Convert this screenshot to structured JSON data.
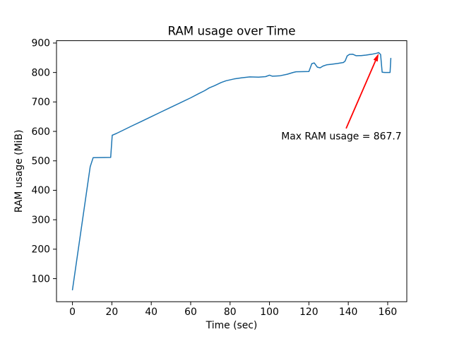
{
  "chart_data": {
    "type": "line",
    "title": "RAM usage over Time",
    "xlabel": "Time (sec)",
    "ylabel": "RAM usage (MiB)",
    "xlim": [
      -8.1,
      169.7
    ],
    "ylim": [
      21.7,
      908.0
    ],
    "xticks": [
      0,
      20,
      40,
      60,
      80,
      100,
      120,
      140,
      160
    ],
    "yticks": [
      100,
      200,
      300,
      400,
      500,
      600,
      700,
      800,
      900
    ],
    "grid": false,
    "legend": null,
    "line_color": "#1f77b4",
    "max_value": 867.7,
    "series": [
      {
        "name": "RAM usage",
        "points": [
          [
            0,
            62
          ],
          [
            9,
            480
          ],
          [
            10.5,
            511
          ],
          [
            19.4,
            511.5
          ],
          [
            20.2,
            587
          ],
          [
            21.3,
            590
          ],
          [
            22.3,
            593
          ],
          [
            26,
            605
          ],
          [
            30,
            618
          ],
          [
            35,
            634
          ],
          [
            40,
            650
          ],
          [
            45,
            666
          ],
          [
            50,
            682
          ],
          [
            55,
            698
          ],
          [
            60,
            714
          ],
          [
            64,
            728
          ],
          [
            67,
            738
          ],
          [
            69.5,
            748
          ],
          [
            72,
            755
          ],
          [
            75.5,
            766
          ],
          [
            78,
            772
          ],
          [
            82,
            778
          ],
          [
            86,
            782
          ],
          [
            90,
            785
          ],
          [
            94.5,
            784
          ],
          [
            98,
            786
          ],
          [
            100,
            791
          ],
          [
            101.5,
            787.5
          ],
          [
            103.5,
            788
          ],
          [
            105.5,
            789
          ],
          [
            109,
            794
          ],
          [
            112,
            800
          ],
          [
            113.5,
            802.5
          ],
          [
            120,
            803.5
          ],
          [
            121.5,
            830
          ],
          [
            122.7,
            832.5
          ],
          [
            124.3,
            818
          ],
          [
            125.7,
            816
          ],
          [
            127.2,
            822
          ],
          [
            129,
            826
          ],
          [
            131.5,
            828
          ],
          [
            134.5,
            830.5
          ],
          [
            137.5,
            834
          ],
          [
            138.4,
            839
          ],
          [
            139.4,
            856
          ],
          [
            140.6,
            861.5
          ],
          [
            142.3,
            862
          ],
          [
            144,
            857
          ],
          [
            146.5,
            857.5
          ],
          [
            149,
            859
          ],
          [
            152,
            862
          ],
          [
            154.5,
            865.5
          ],
          [
            155.4,
            867.7
          ],
          [
            156.4,
            861
          ],
          [
            157.2,
            801
          ],
          [
            158.5,
            800
          ],
          [
            161.2,
            800
          ],
          [
            161.6,
            848
          ]
        ]
      }
    ],
    "annotation": {
      "text": "Max RAM usage = 867.7",
      "color": "#ff0000",
      "xy": [
        155.4,
        867.7
      ],
      "arrow_tail_xy": [
        138.9,
        610
      ],
      "text_xy": [
        106,
        572
      ]
    }
  }
}
